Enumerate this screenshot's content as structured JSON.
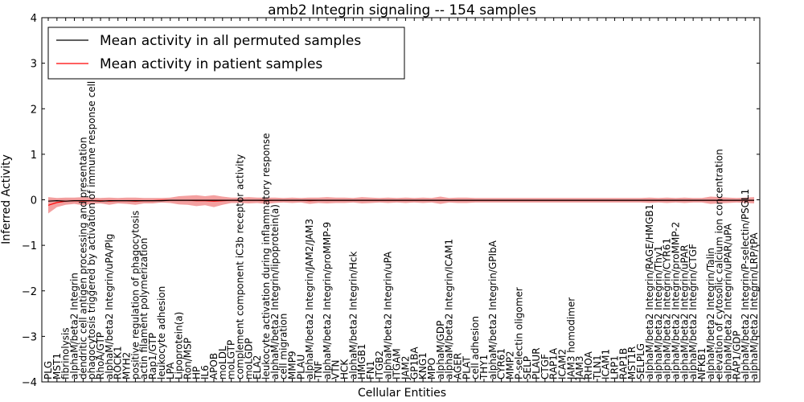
{
  "chart_data": {
    "type": "line",
    "title": "amb2 Integrin signaling -- 154 samples",
    "xlabel": "Cellular Entities",
    "ylabel": "Inferred Activity",
    "ylim": [
      -4,
      4
    ],
    "yticks": [
      -4,
      -3,
      -2,
      -1,
      0,
      1,
      2,
      3,
      4
    ],
    "grid": false,
    "legend_position": "top-left",
    "colors": {
      "permuted": "#000000",
      "patient": "#ff0000",
      "patient_band": "#f08080",
      "permuted_band": "#c8c8c8"
    },
    "categories": [
      "PLG",
      "MST1",
      "fibrinolysis",
      "alphaM/beta2 Integrin",
      "dendritic cell antigen processing and presentation",
      "phagocytosis triggered by activation of immune response cell surface",
      "RhoA/GTP",
      "alphaM/beta2 Integrin/uPA/Plg",
      "ROCK1",
      "MYH2",
      "positive regulation of phagocytosis",
      "actin filament polymerization",
      "Rap1/GTP",
      "leukocyte adhesion",
      "LPA",
      "Lipoprotein(a)",
      "Ron/MSP",
      "HP",
      "IL6",
      "APOB",
      "moLDL",
      "moLGTP",
      "complement component iC3b receptor activity",
      "moLGDP",
      "ELA2",
      "leukocyte activation during inflammatory response",
      "alphaM/beta2 Integrin/lipoprotein(a)",
      "cell migration",
      "MMP9",
      "PLAU",
      "alphaM/beta2 Integrin/JAM2/JAM3",
      "TNF",
      "alphaM/beta2 Integrin/proMMP-9",
      "VTN",
      "HCK",
      "alphaM/beta2 Integrin/Hck",
      "HMGB1",
      "FN1",
      "ITGB2",
      "alphaM/beta2 Integrin/uPA",
      "ITGAM",
      "JAM2",
      "GP1BA",
      "KNG1",
      "MPO",
      "alphaM/GDP",
      "alphaM/beta2 Integrin/ICAM1",
      "AGER",
      "PLAT",
      "cell adhesion",
      "THY1",
      "alphaM/beta2 Integrin/GPIbA",
      "CYR61",
      "MMP2",
      "P-selectin oligomer",
      "SELP",
      "PLAUR",
      "CTGF",
      "RAP1A",
      "ICAM2",
      "JAM3 homodimer",
      "JAM3",
      "RHOA",
      "TLN1",
      "ICAM1",
      "LRP1",
      "RAP1B",
      "MST1R",
      "SELPLG",
      "alphaM/beta2 Integrin/RAGE/HMGB1",
      "alphaM/beta2 Integrin/Thy1",
      "alphaM/beta2 Integrin/CYR61",
      "alphaM/beta2 Integrin/proMMP-2",
      "alphaM/beta2 Integrin/uPAR",
      "alphaM/beta2 Integrin/CTGF",
      "NFKB1",
      "alphaM/beta2 Integrin/Talin",
      "elevation of cytosolic calcium ion concentration",
      "alphaM/beta2 Integrin/uPAR/uPA",
      "RAP1/GDP",
      "alphaM/beta2 Integrin/P-selectin/PSGL1",
      "alphaM/beta2 Integrin/LRP/tPA"
    ],
    "series": [
      {
        "name": "Mean activity in all permuted samples",
        "values": [
          -0.03,
          -0.02,
          -0.03,
          -0.02,
          -0.02,
          -0.02,
          -0.03,
          -0.02,
          -0.02,
          -0.02,
          -0.02,
          -0.02,
          -0.02,
          -0.02,
          -0.01,
          -0.01,
          -0.01,
          -0.01,
          -0.01,
          -0.01,
          -0.01,
          -0.01,
          -0.01,
          -0.01,
          -0.01,
          -0.01,
          -0.01,
          -0.01,
          -0.01,
          -0.01,
          -0.01,
          -0.01,
          -0.01,
          -0.01,
          -0.01,
          -0.01,
          -0.01,
          -0.01,
          -0.01,
          -0.01,
          -0.01,
          -0.01,
          -0.01,
          -0.01,
          -0.01,
          -0.01,
          -0.01,
          -0.01,
          -0.01,
          -0.01,
          -0.01,
          -0.01,
          -0.01,
          -0.01,
          -0.01,
          -0.01,
          -0.01,
          -0.01,
          -0.01,
          -0.01,
          -0.01,
          -0.01,
          -0.01,
          -0.01,
          -0.01,
          -0.01,
          -0.01,
          -0.01,
          -0.01,
          -0.01,
          -0.01,
          -0.01,
          -0.01,
          -0.01,
          -0.01,
          -0.01,
          -0.01,
          -0.01,
          -0.01,
          -0.01,
          -0.01,
          -0.01
        ],
        "band": [
          0.05,
          0.04,
          0.05,
          0.04,
          0.04,
          0.04,
          0.05,
          0.04,
          0.04,
          0.04,
          0.04,
          0.04,
          0.04,
          0.04,
          0.03,
          0.03,
          0.03,
          0.03,
          0.03,
          0.03,
          0.03,
          0.03,
          0.03,
          0.03,
          0.03,
          0.03,
          0.03,
          0.03,
          0.03,
          0.03,
          0.03,
          0.03,
          0.03,
          0.03,
          0.03,
          0.03,
          0.03,
          0.03,
          0.03,
          0.03,
          0.03,
          0.03,
          0.03,
          0.03,
          0.03,
          0.03,
          0.03,
          0.03,
          0.03,
          0.03,
          0.03,
          0.03,
          0.03,
          0.03,
          0.03,
          0.03,
          0.03,
          0.03,
          0.03,
          0.03,
          0.03,
          0.03,
          0.03,
          0.03,
          0.03,
          0.03,
          0.03,
          0.03,
          0.03,
          0.03,
          0.03,
          0.03,
          0.03,
          0.03,
          0.03,
          0.03,
          0.03,
          0.03,
          0.03,
          0.03,
          0.03,
          0.03
        ]
      },
      {
        "name": "Mean activity in patient samples",
        "values": [
          -0.12,
          -0.06,
          -0.03,
          -0.02,
          -0.03,
          -0.02,
          -0.02,
          -0.03,
          -0.02,
          -0.02,
          -0.03,
          -0.02,
          -0.02,
          -0.01,
          -0.01,
          -0.01,
          -0.01,
          -0.02,
          -0.02,
          -0.03,
          -0.02,
          -0.01,
          -0.01,
          -0.01,
          -0.01,
          -0.02,
          -0.01,
          -0.01,
          -0.01,
          -0.01,
          -0.02,
          -0.01,
          -0.01,
          -0.01,
          -0.01,
          -0.01,
          -0.01,
          -0.01,
          -0.01,
          -0.01,
          -0.01,
          -0.01,
          -0.01,
          -0.01,
          -0.01,
          -0.01,
          -0.01,
          -0.01,
          -0.01,
          -0.01,
          -0.01,
          -0.01,
          -0.01,
          -0.01,
          -0.01,
          -0.01,
          -0.01,
          -0.01,
          -0.01,
          -0.01,
          -0.01,
          -0.01,
          -0.01,
          -0.01,
          -0.01,
          -0.01,
          -0.01,
          -0.01,
          -0.01,
          -0.01,
          -0.01,
          -0.01,
          -0.01,
          -0.01,
          -0.01,
          -0.01,
          -0.01,
          -0.01,
          -0.01,
          -0.01,
          -0.01,
          -0.01
        ],
        "band": [
          0.18,
          0.1,
          0.08,
          0.07,
          0.09,
          0.07,
          0.06,
          0.08,
          0.06,
          0.07,
          0.08,
          0.06,
          0.06,
          0.05,
          0.06,
          0.09,
          0.1,
          0.12,
          0.1,
          0.13,
          0.09,
          0.06,
          0.06,
          0.07,
          0.06,
          0.07,
          0.06,
          0.05,
          0.06,
          0.05,
          0.07,
          0.06,
          0.07,
          0.06,
          0.06,
          0.05,
          0.07,
          0.06,
          0.05,
          0.06,
          0.05,
          0.06,
          0.05,
          0.06,
          0.05,
          0.08,
          0.05,
          0.06,
          0.06,
          0.05,
          0.05,
          0.05,
          0.05,
          0.05,
          0.05,
          0.05,
          0.05,
          0.05,
          0.05,
          0.05,
          0.05,
          0.05,
          0.05,
          0.05,
          0.05,
          0.05,
          0.05,
          0.05,
          0.05,
          0.06,
          0.05,
          0.06,
          0.05,
          0.06,
          0.05,
          0.05,
          0.08,
          0.07,
          0.06,
          0.05,
          0.06,
          0.07
        ]
      }
    ]
  }
}
